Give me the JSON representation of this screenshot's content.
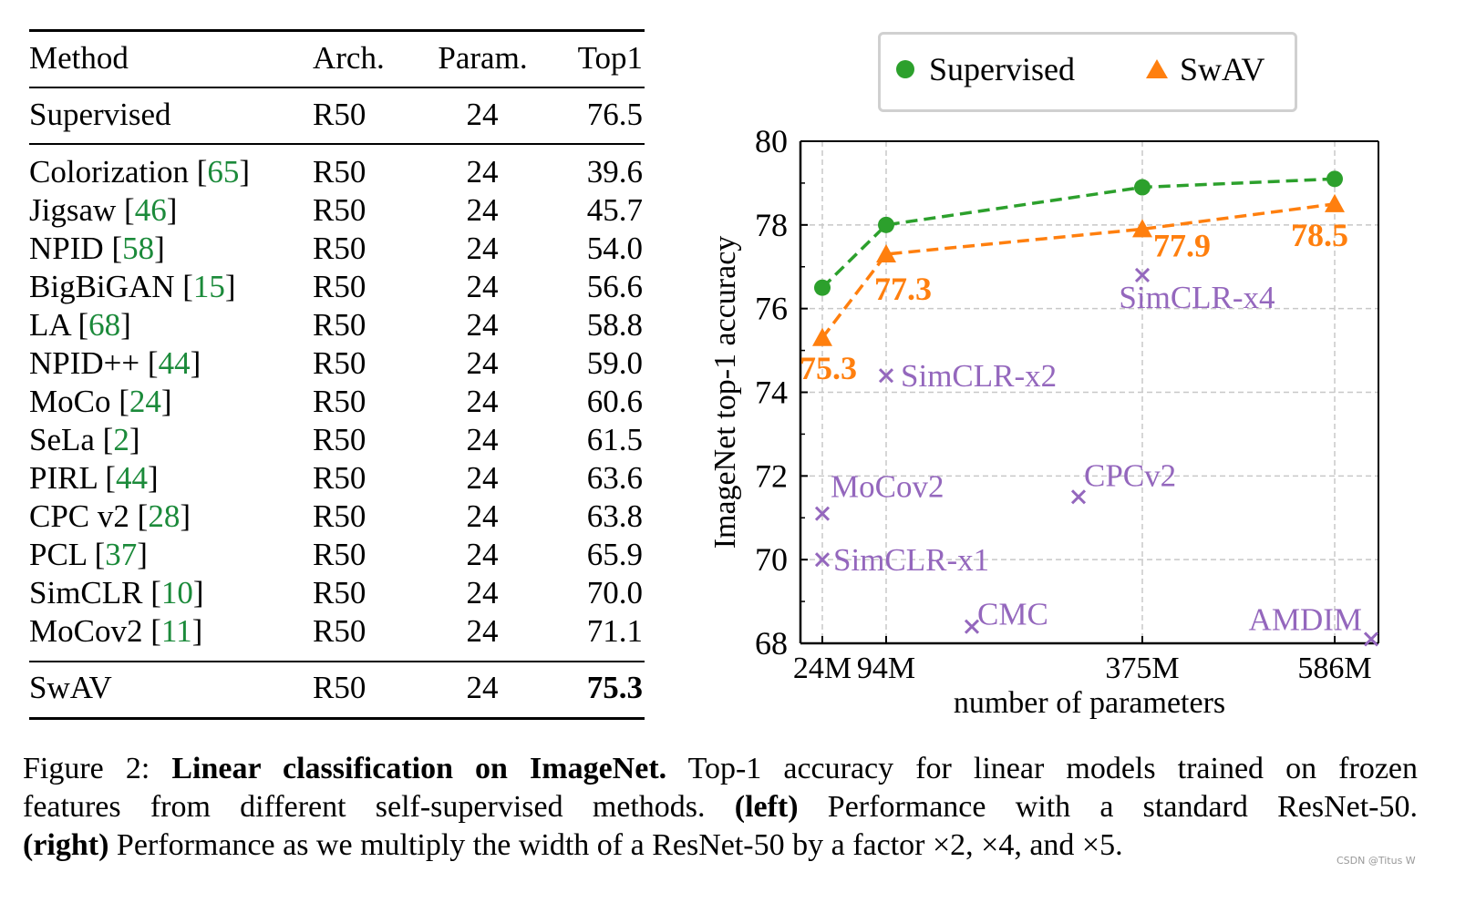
{
  "table": {
    "headers": [
      "Method",
      "Arch.",
      "Param.",
      "Top1"
    ],
    "baseline": {
      "method": "Supervised",
      "arch": "R50",
      "param": "24",
      "top1": "76.5"
    },
    "rows": [
      {
        "method": "Colorization",
        "cite": "65",
        "arch": "R50",
        "param": "24",
        "top1": "39.6"
      },
      {
        "method": "Jigsaw",
        "cite": "46",
        "arch": "R50",
        "param": "24",
        "top1": "45.7"
      },
      {
        "method": "NPID",
        "cite": "58",
        "arch": "R50",
        "param": "24",
        "top1": "54.0"
      },
      {
        "method": "BigBiGAN",
        "cite": "15",
        "arch": "R50",
        "param": "24",
        "top1": "56.6"
      },
      {
        "method": "LA",
        "cite": "68",
        "arch": "R50",
        "param": "24",
        "top1": "58.8"
      },
      {
        "method": "NPID++",
        "cite": "44",
        "arch": "R50",
        "param": "24",
        "top1": "59.0"
      },
      {
        "method": "MoCo",
        "cite": "24",
        "arch": "R50",
        "param": "24",
        "top1": "60.6"
      },
      {
        "method": "SeLa",
        "cite": "2",
        "arch": "R50",
        "param": "24",
        "top1": "61.5"
      },
      {
        "method": "PIRL",
        "cite": "44",
        "arch": "R50",
        "param": "24",
        "top1": "63.6"
      },
      {
        "method": "CPC v2",
        "cite": "28",
        "arch": "R50",
        "param": "24",
        "top1": "63.8"
      },
      {
        "method": "PCL",
        "cite": "37",
        "arch": "R50",
        "param": "24",
        "top1": "65.9"
      },
      {
        "method": "SimCLR",
        "cite": "10",
        "arch": "R50",
        "param": "24",
        "top1": "70.0"
      },
      {
        "method": "MoCov2",
        "cite": "11",
        "arch": "R50",
        "param": "24",
        "top1": "71.1"
      }
    ],
    "ours": {
      "method": "SwAV",
      "arch": "R50",
      "param": "24",
      "top1": "75.3"
    }
  },
  "chart_data": {
    "type": "line",
    "xlabel": "number of parameters",
    "ylabel": "ImageNet top-1 accuracy",
    "x_unit_millions": true,
    "xlim": [
      0,
      634
    ],
    "ylim": [
      68,
      80
    ],
    "x_ticks": [
      24,
      94,
      375,
      586
    ],
    "x_tick_labels": [
      "24M",
      "94M",
      "375M",
      "586M"
    ],
    "y_ticks": [
      68,
      70,
      72,
      74,
      76,
      78,
      80
    ],
    "y_tick_labels": [
      "68",
      "70",
      "72",
      "74",
      "76",
      "78",
      "80"
    ],
    "grid": true,
    "legend_position": "top",
    "series": [
      {
        "name": "Supervised",
        "color": "#2ca02c",
        "marker": "circle",
        "line": "dashed",
        "x": [
          24,
          94,
          375,
          586
        ],
        "y": [
          76.5,
          78.0,
          78.9,
          79.1
        ],
        "labels": []
      },
      {
        "name": "SwAV",
        "color": "#ff7f0e",
        "marker": "triangle",
        "line": "dashed",
        "x": [
          24,
          94,
          375,
          586
        ],
        "y": [
          75.3,
          77.3,
          77.9,
          78.5
        ],
        "labels": [
          "75.3",
          "77.3",
          "77.9",
          "78.5"
        ]
      }
    ],
    "others": {
      "color": "#9467bd",
      "marker": "x",
      "points": [
        {
          "label": "MoCov2",
          "x": 24,
          "y": 71.1
        },
        {
          "label": "SimCLR-x1",
          "x": 24,
          "y": 70.0
        },
        {
          "label": "SimCLR-x2",
          "x": 94,
          "y": 74.4
        },
        {
          "label": "SimCLR-x4",
          "x": 375,
          "y": 76.8
        },
        {
          "label": "CPCv2",
          "x": 305,
          "y": 71.5
        },
        {
          "label": "CMC",
          "x": 188,
          "y": 68.4
        },
        {
          "label": "AMDIM",
          "x": 626,
          "y": 68.1
        }
      ]
    }
  },
  "caption": {
    "prefix": "Figure 2: ",
    "title": "Linear classification on ImageNet.",
    "line1_rest": " Top-1 accuracy for linear models trained on frozen",
    "line2_a": "features from different self-supervised methods. ",
    "left_tag": "(left)",
    "line2_b": " Performance with a standard ResNet-50.",
    "right_tag": "(right)",
    "line3": " Performance as we multiply the width of a ResNet-50 by a factor ×2, ×4, and ×5."
  },
  "watermark": "CSDN @Titus W"
}
